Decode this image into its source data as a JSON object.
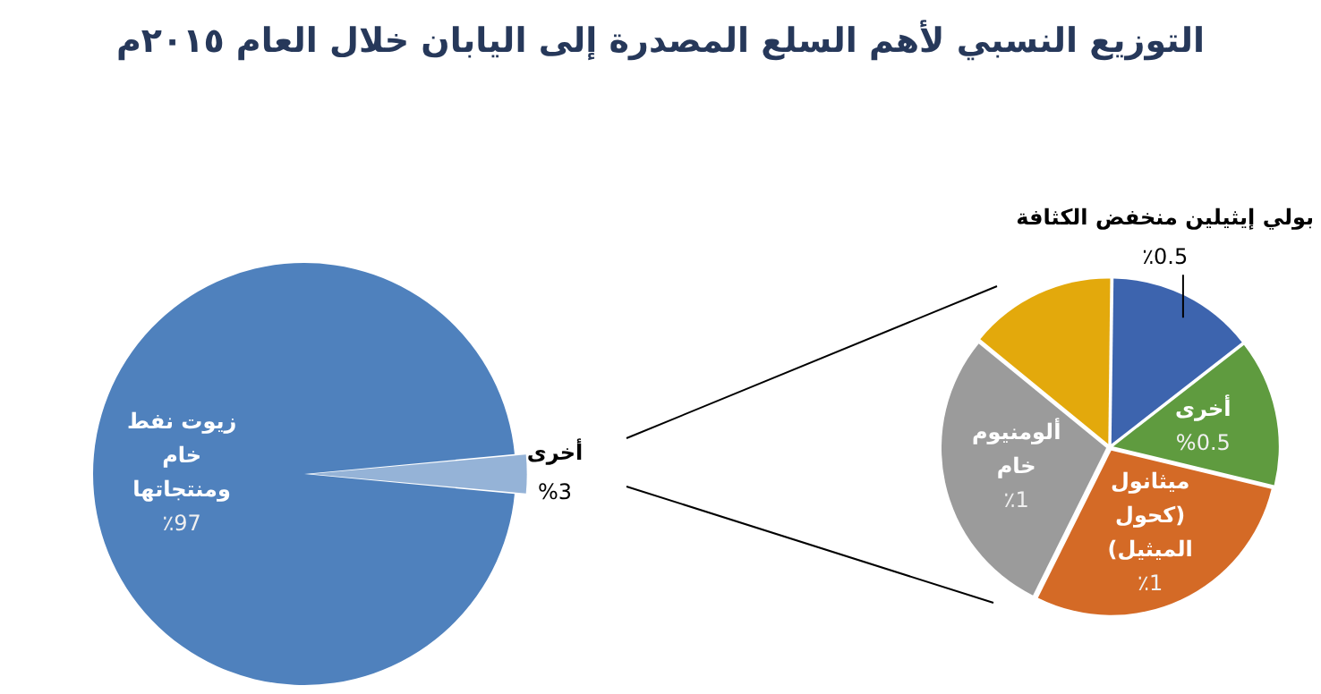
{
  "chart_data": [
    {
      "type": "pie",
      "title": "التوزيع النسبي لأهم السلع المصدرة إلى اليابان خلال العام ٢٠١٥م",
      "categories": [
        "زيوت نفط خام ومنتجاتها",
        "أخرى"
      ],
      "values": [
        97,
        3
      ],
      "value_labels": [
        "٪97",
        "%3"
      ],
      "colors": [
        "#4f81bd",
        "#95b3d7"
      ],
      "legend": false
    },
    {
      "type": "pie",
      "categories": [
        "ميثانول (كحول الميثيل)",
        "ألومنيوم خام",
        null,
        "بولي إيثيلين منخفض الكثافة",
        "أخرى"
      ],
      "values": [
        1,
        1,
        0.5,
        0.5,
        0.5
      ],
      "value_labels": [
        "٪1",
        "٪1",
        null,
        "٪0.5",
        "%0.5"
      ],
      "colors": [
        "#d46a26",
        "#9b9b9b",
        "#e3a90c",
        "#3d64ae",
        "#5f9b3f"
      ],
      "legend": false
    }
  ]
}
